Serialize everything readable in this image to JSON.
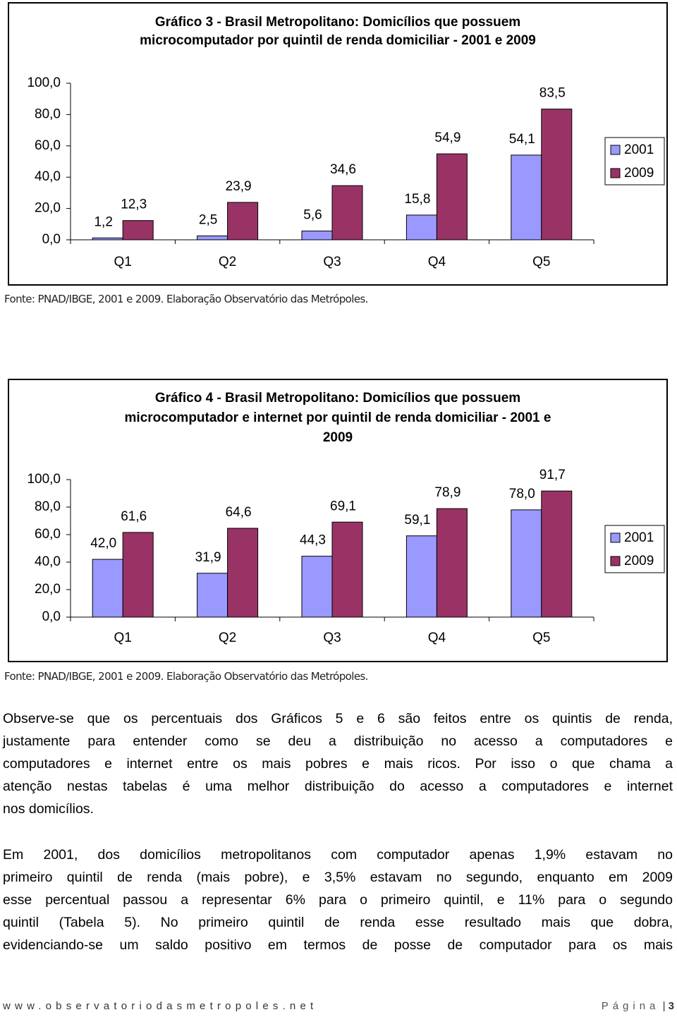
{
  "chart_data": [
    {
      "type": "bar",
      "title": [
        "Gráfico 3 - Brasil Metropolitano: Domicílios que possuem",
        "microcomputador por quintil de renda domiciliar - 2001 e 2009"
      ],
      "categories": [
        "Q1",
        "Q2",
        "Q3",
        "Q4",
        "Q5"
      ],
      "series": [
        {
          "name": "2001",
          "color": "#9999ff",
          "values": [
            1.2,
            2.5,
            5.6,
            15.8,
            54.1
          ],
          "value_labels": [
            "1,2",
            "2,5",
            "5,6",
            "15,8",
            "54,1"
          ]
        },
        {
          "name": "2009",
          "color": "#993366",
          "values": [
            12.3,
            23.9,
            34.6,
            54.9,
            83.5
          ],
          "value_labels": [
            "12,3",
            "23,9",
            "34,6",
            "54,9",
            "83,5"
          ]
        }
      ],
      "ylim": [
        0,
        100
      ],
      "yticks": [
        {
          "value": 0,
          "label": "0,0"
        },
        {
          "value": 20,
          "label": "20,0"
        },
        {
          "value": 40,
          "label": "40,0"
        },
        {
          "value": 60,
          "label": "60,0"
        },
        {
          "value": 80,
          "label": "80,0"
        },
        {
          "value": 100,
          "label": "100,0"
        }
      ],
      "legend": "right",
      "source": "Fonte: PNAD/IBGE, 2001 e 2009. Elaboração Observatório das Metrópoles."
    },
    {
      "type": "bar",
      "title": [
        "Gráfico 4 - Brasil Metropolitano: Domicílios que possuem",
        "microcomputador e internet por quintil de renda domiciliar - 2001 e",
        "2009"
      ],
      "categories": [
        "Q1",
        "Q2",
        "Q3",
        "Q4",
        "Q5"
      ],
      "series": [
        {
          "name": "2001",
          "color": "#9999ff",
          "values": [
            42.0,
            31.9,
            44.3,
            59.1,
            78.0
          ],
          "value_labels": [
            "42,0",
            "31,9",
            "44,3",
            "59,1",
            "78,0"
          ]
        },
        {
          "name": "2009",
          "color": "#993366",
          "values": [
            61.6,
            64.6,
            69.1,
            78.9,
            91.7
          ],
          "value_labels": [
            "61,6",
            "64,6",
            "69,1",
            "78,9",
            "91,7"
          ]
        }
      ],
      "ylim": [
        0,
        100
      ],
      "yticks": [
        {
          "value": 0,
          "label": "0,0"
        },
        {
          "value": 20,
          "label": "20,0"
        },
        {
          "value": 40,
          "label": "40,0"
        },
        {
          "value": 60,
          "label": "60,0"
        },
        {
          "value": 80,
          "label": "80,0"
        },
        {
          "value": 100,
          "label": "100,0"
        }
      ],
      "legend": "right",
      "source": "Fonte: PNAD/IBGE, 2001 e 2009. Elaboração Observatório das Metrópoles."
    }
  ],
  "paragraphs": [
    [
      "Observe-se que os percentuais dos Gráficos 5 e 6 são feitos entre os quintis de renda,",
      "justamente para entender como se deu a distribuição no  acesso a computadores e",
      "computadores e internet entre os mais pobres e mais ricos. Por isso o que chama a",
      "atenção nestas tabelas é uma melhor distribuição do acesso a computadores e internet",
      "nos domicílios."
    ],
    [
      "Em 2001, dos domicílios metropolitanos com computador apenas 1,9% estavam no",
      "primeiro quintil de renda (mais pobre), e 3,5% estavam no segundo, enquanto em 2009",
      "esse percentual passou a representar 6% para o primeiro quintil, e 11% para o segundo",
      "quintil (Tabela 5). No primeiro quintil de renda esse resultado mais que dobra,",
      "evidenciando-se um saldo positivo em termos de posse de computador para os mais"
    ]
  ],
  "footer": {
    "site": "www.observatoriodasmetropoles.net",
    "page_label": "Página",
    "separator": "|",
    "page_number": "3"
  }
}
